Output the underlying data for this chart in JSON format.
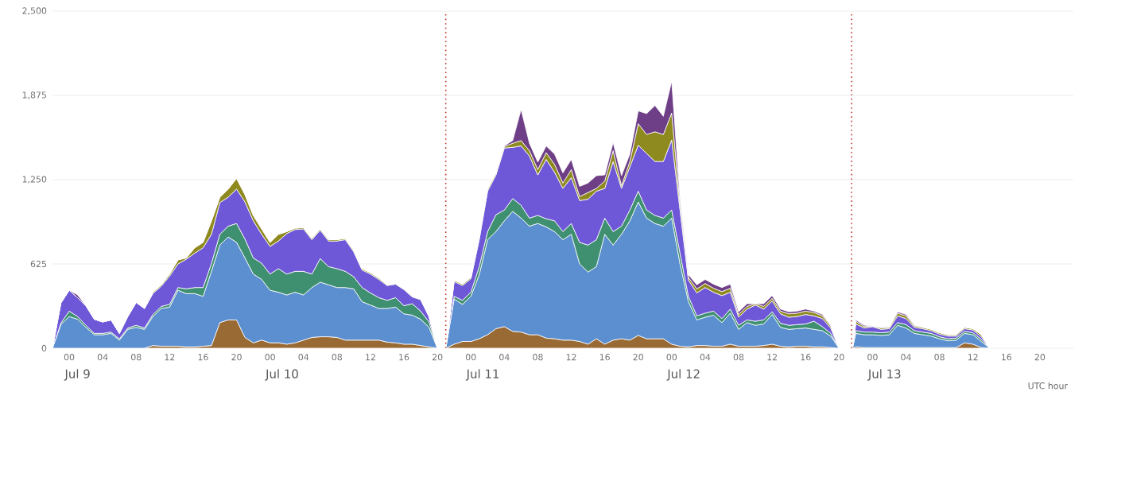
{
  "chart_data": {
    "type": "area",
    "stacked": true,
    "xlabel": "UTC hour",
    "grid": "y",
    "line_style": "solid",
    "xlim": [
      -2,
      120
    ],
    "ylim": [
      0,
      2500
    ],
    "yticks": [
      0,
      625,
      {
        "value": 1250,
        "label": "1,250"
      },
      {
        "value": 1875,
        "label": "1,875"
      },
      {
        "value": 2500,
        "label": "2,500"
      }
    ],
    "xticks": [
      {
        "value": 0,
        "label": "00"
      },
      {
        "value": 4,
        "label": "04"
      },
      {
        "value": 8,
        "label": "08"
      },
      {
        "value": 12,
        "label": "12"
      },
      {
        "value": 16,
        "label": "16"
      },
      {
        "value": 20,
        "label": "20"
      },
      {
        "value": 24,
        "label": "00"
      },
      {
        "value": 28,
        "label": "04"
      },
      {
        "value": 32,
        "label": "08"
      },
      {
        "value": 36,
        "label": "12"
      },
      {
        "value": 40,
        "label": "16"
      },
      {
        "value": 44,
        "label": "20"
      },
      {
        "value": 48,
        "label": "00"
      },
      {
        "value": 52,
        "label": "04"
      },
      {
        "value": 56,
        "label": "08"
      },
      {
        "value": 60,
        "label": "12"
      },
      {
        "value": 64,
        "label": "16"
      },
      {
        "value": 68,
        "label": "20"
      },
      {
        "value": 72,
        "label": "00"
      },
      {
        "value": 76,
        "label": "04"
      },
      {
        "value": 80,
        "label": "08"
      },
      {
        "value": 84,
        "label": "12"
      },
      {
        "value": 88,
        "label": "16"
      },
      {
        "value": 92,
        "label": "20"
      },
      {
        "value": 96,
        "label": "00"
      },
      {
        "value": 100,
        "label": "04"
      },
      {
        "value": 104,
        "label": "08"
      },
      {
        "value": 108,
        "label": "12"
      },
      {
        "value": 112,
        "label": "16"
      },
      {
        "value": 116,
        "label": "20"
      }
    ],
    "annotations": [
      "Jul 9",
      "Jul 10",
      "Jul 11",
      "Jul 12",
      "Jul 13"
    ],
    "ref_lines": [
      {
        "axis": "x",
        "value": 45,
        "color": "#c0392b",
        "line_style": "dotted"
      },
      {
        "axis": "x",
        "value": 93.5,
        "color": "#c0392b",
        "line_style": "dotted"
      }
    ],
    "x": [
      -2,
      -1,
      0,
      1,
      2,
      3,
      4,
      5,
      6,
      7,
      8,
      9,
      10,
      11,
      12,
      13,
      14,
      15,
      16,
      17,
      18,
      19,
      20,
      21,
      22,
      23,
      24,
      25,
      26,
      27,
      28,
      29,
      30,
      31,
      32,
      33,
      34,
      35,
      36,
      37,
      38,
      39,
      40,
      41,
      42,
      43,
      44,
      45,
      46,
      47,
      48,
      49,
      50,
      51,
      52,
      53,
      54,
      55,
      56,
      57,
      58,
      59,
      60,
      61,
      62,
      63,
      64,
      65,
      66,
      67,
      68,
      69,
      70,
      71,
      72,
      73,
      74,
      75,
      76,
      77,
      78,
      79,
      80,
      81,
      82,
      83,
      84,
      85,
      86,
      87,
      88,
      89,
      90,
      91,
      92,
      93.6,
      94,
      95,
      96,
      97,
      98,
      99,
      100,
      101,
      102,
      103,
      104,
      105,
      106,
      107,
      108,
      109,
      110
    ],
    "series": [
      {
        "color": "#9a6a35",
        "values": [
          0,
          0,
          0,
          0,
          0,
          0,
          0,
          0,
          0,
          0,
          0,
          0,
          20,
          15,
          15,
          15,
          10,
          10,
          15,
          20,
          190,
          210,
          210,
          80,
          40,
          60,
          40,
          40,
          30,
          40,
          60,
          80,
          85,
          85,
          80,
          60,
          60,
          60,
          60,
          60,
          45,
          40,
          30,
          30,
          20,
          10,
          0,
          0,
          30,
          50,
          50,
          70,
          100,
          145,
          160,
          125,
          120,
          100,
          100,
          75,
          70,
          60,
          60,
          50,
          30,
          70,
          30,
          60,
          70,
          60,
          95,
          70,
          70,
          70,
          30,
          15,
          10,
          20,
          20,
          15,
          15,
          30,
          15,
          15,
          15,
          20,
          30,
          15,
          10,
          15,
          15,
          10,
          10,
          5,
          0,
          0,
          10,
          5,
          5,
          5,
          5,
          5,
          5,
          5,
          5,
          5,
          5,
          5,
          5,
          40,
          30,
          5,
          0
        ]
      },
      {
        "color": "#5b8fd0",
        "values": [
          0,
          175,
          235,
          215,
          155,
          100,
          100,
          110,
          60,
          140,
          155,
          140,
          215,
          280,
          290,
          415,
          395,
          395,
          370,
          550,
          575,
          615,
          575,
          590,
          510,
          450,
          390,
          375,
          365,
          375,
          335,
          370,
          405,
          385,
          370,
          390,
          380,
          285,
          260,
          235,
          250,
          265,
          225,
          215,
          195,
          145,
          0,
          0,
          335,
          275,
          335,
          475,
          705,
          720,
          785,
          890,
          845,
          805,
          825,
          825,
          795,
          745,
          785,
          575,
          535,
          535,
          815,
          705,
          775,
          885,
          990,
          895,
          855,
          835,
          935,
          610,
          335,
          190,
          210,
          230,
          175,
          230,
          125,
          175,
          155,
          160,
          220,
          140,
          130,
          130,
          135,
          130,
          120,
          85,
          0,
          0,
          100,
          95,
          95,
          90,
          95,
          165,
          145,
          105,
          95,
          85,
          65,
          50,
          55,
          70,
          70,
          45,
          0
        ]
      },
      {
        "color": "#3f9070",
        "values": [
          0,
          10,
          40,
          20,
          15,
          10,
          10,
          10,
          10,
          10,
          15,
          10,
          15,
          15,
          20,
          20,
          35,
          45,
          65,
          60,
          80,
          80,
          140,
          140,
          120,
          120,
          120,
          175,
          155,
          155,
          175,
          100,
          175,
          135,
          140,
          120,
          90,
          105,
          90,
          80,
          60,
          70,
          60,
          85,
          60,
          40,
          0,
          0,
          20,
          30,
          30,
          60,
          60,
          125,
          80,
          95,
          95,
          60,
          60,
          60,
          80,
          60,
          80,
          160,
          200,
          200,
          120,
          100,
          60,
          80,
          80,
          60,
          60,
          60,
          60,
          80,
          40,
          30,
          30,
          30,
          30,
          30,
          30,
          20,
          30,
          30,
          20,
          30,
          30,
          30,
          30,
          60,
          30,
          20,
          0,
          0,
          20,
          20,
          20,
          20,
          20,
          20,
          25,
          20,
          20,
          20,
          15,
          15,
          15,
          15,
          15,
          15,
          0
        ]
      },
      {
        "color": "#6f58d8",
        "values": [
          0,
          150,
          155,
          140,
          145,
          105,
          85,
          90,
          40,
          85,
          170,
          145,
          155,
          150,
          210,
          175,
          220,
          255,
          295,
          215,
          235,
          215,
          255,
          275,
          275,
          215,
          205,
          205,
          300,
          310,
          315,
          255,
          210,
          190,
          205,
          235,
          185,
          130,
          140,
          135,
          110,
          100,
          120,
          50,
          85,
          40,
          0,
          0,
          110,
          110,
          100,
          200,
          300,
          295,
          460,
          380,
          440,
          460,
          300,
          440,
          360,
          320,
          340,
          310,
          340,
          360,
          220,
          520,
          280,
          320,
          340,
          420,
          400,
          420,
          520,
          320,
          120,
          170,
          190,
          140,
          170,
          125,
          60,
          80,
          120,
          80,
          80,
          70,
          60,
          60,
          70,
          40,
          60,
          40,
          0,
          0,
          50,
          30,
          40,
          25,
          25,
          50,
          45,
          25,
          25,
          20,
          20,
          20,
          15,
          20,
          20,
          20,
          0
        ]
      },
      {
        "color": "#8f8a1f",
        "values": [
          0,
          0,
          0,
          0,
          0,
          0,
          0,
          0,
          0,
          0,
          0,
          0,
          10,
          10,
          15,
          30,
          10,
          40,
          40,
          100,
          40,
          60,
          80,
          55,
          40,
          40,
          30,
          50,
          15,
          10,
          10,
          10,
          10,
          10,
          10,
          10,
          10,
          10,
          10,
          10,
          5,
          5,
          5,
          5,
          5,
          0,
          0,
          0,
          10,
          10,
          10,
          20,
          15,
          15,
          10,
          30,
          40,
          40,
          40,
          50,
          60,
          40,
          60,
          30,
          50,
          20,
          55,
          80,
          20,
          40,
          160,
          140,
          220,
          200,
          200,
          40,
          20,
          30,
          30,
          30,
          30,
          30,
          20,
          20,
          10,
          20,
          20,
          20,
          25,
          25,
          25,
          25,
          20,
          15,
          0,
          0,
          20,
          10,
          5,
          10,
          10,
          20,
          20,
          10,
          10,
          10,
          10,
          10,
          10,
          10,
          10,
          15,
          0
        ]
      },
      {
        "color": "#6e3f87",
        "values": [
          0,
          0,
          0,
          20,
          0,
          0,
          0,
          0,
          0,
          0,
          0,
          0,
          0,
          0,
          0,
          0,
          0,
          0,
          0,
          0,
          0,
          0,
          0,
          0,
          0,
          0,
          0,
          0,
          0,
          0,
          0,
          0,
          0,
          0,
          0,
          0,
          0,
          0,
          0,
          0,
          0,
          0,
          0,
          0,
          0,
          0,
          0,
          0,
          0,
          0,
          0,
          0,
          0,
          0,
          5,
          20,
          230,
          55,
          55,
          50,
          75,
          75,
          75,
          75,
          70,
          95,
          45,
          60,
          75,
          55,
          95,
          155,
          195,
          135,
          235,
          40,
          20,
          30,
          30,
          30,
          30,
          30,
          20,
          20,
          0,
          20,
          20,
          15,
          15,
          15,
          15,
          10,
          10,
          5,
          0,
          0,
          10,
          10,
          0,
          5,
          0,
          10,
          10,
          5,
          0,
          0,
          0,
          0,
          0,
          0,
          0,
          0,
          0
        ]
      }
    ]
  }
}
